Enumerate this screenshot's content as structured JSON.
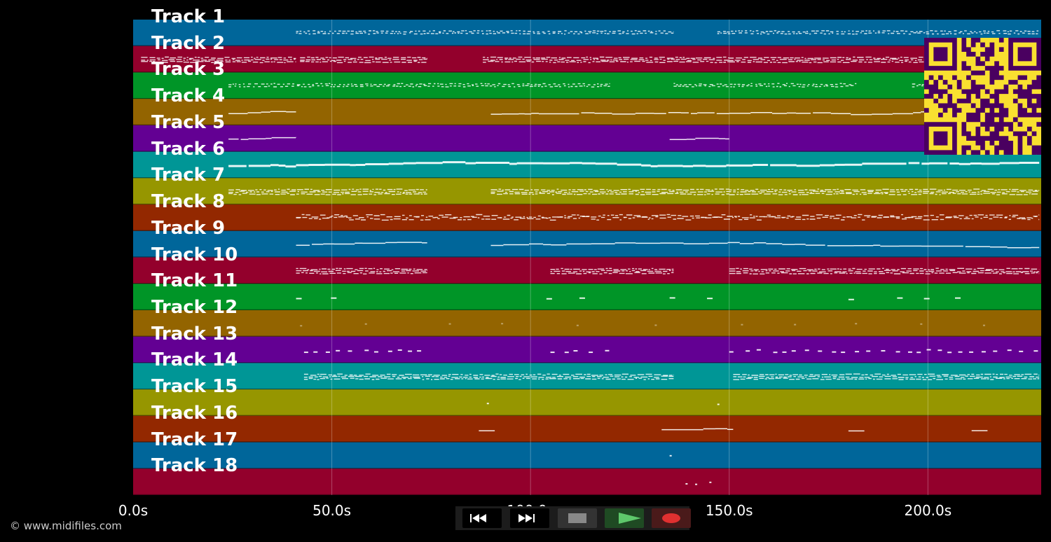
{
  "colors": {
    "background": "#000000",
    "track_colors": [
      "#00669a",
      "#93002c",
      "#009527",
      "#936400",
      "#630093",
      "#009696",
      "#969600",
      "#932800"
    ],
    "qr_fg": "#4a0060",
    "qr_bg": "#f9e030"
  },
  "chart_data": {
    "type": "piano-roll",
    "x_unit": "s",
    "xlim": [
      0,
      228.5
    ],
    "grid": true,
    "x_ticks": [
      {
        "value": 0,
        "label": "0.0s"
      },
      {
        "value": 50,
        "label": "50.0s"
      },
      {
        "value": 100,
        "label": "100.0s"
      },
      {
        "value": 150,
        "label": "150.0s"
      },
      {
        "value": 200,
        "label": "200.0s"
      }
    ],
    "tracks": [
      {
        "label": "Track 1",
        "segments": [
          [
            41,
            136
          ],
          [
            147,
            228
          ]
        ],
        "style": "sparse"
      },
      {
        "label": "Track 2",
        "segments": [
          [
            2,
            41
          ],
          [
            42,
            74
          ],
          [
            88,
            150
          ],
          [
            150,
            228
          ]
        ],
        "style": "dense"
      },
      {
        "label": "Track 3",
        "segments": [
          [
            24,
            120
          ],
          [
            136,
            182
          ],
          [
            196,
            228
          ]
        ],
        "style": "sparse"
      },
      {
        "label": "Track 4",
        "segments": [
          [
            24,
            41
          ],
          [
            90,
            150
          ],
          [
            150,
            228
          ]
        ],
        "style": "line"
      },
      {
        "label": "Track 5",
        "segments": [
          [
            24,
            41
          ],
          [
            135,
            150
          ]
        ],
        "style": "line"
      },
      {
        "label": "Track 6",
        "segments": [
          [
            24,
            41
          ],
          [
            41,
            150
          ],
          [
            150,
            228
          ]
        ],
        "style": "thick"
      },
      {
        "label": "Track 7",
        "segments": [
          [
            24,
            74
          ],
          [
            90,
            150
          ],
          [
            150,
            228
          ]
        ],
        "style": "dense"
      },
      {
        "label": "Track 8",
        "segments": [
          [
            41,
            228
          ]
        ],
        "style": "dotted"
      },
      {
        "label": "Track 9",
        "segments": [
          [
            41,
            74
          ],
          [
            90,
            228
          ]
        ],
        "style": "line"
      },
      {
        "label": "Track 10",
        "segments": [
          [
            41,
            74
          ],
          [
            105,
            136
          ],
          [
            150,
            228
          ]
        ],
        "style": "dense"
      },
      {
        "label": "Track 11",
        "segments": [
          [
            41,
            55
          ],
          [
            104,
            120
          ],
          [
            135,
            150
          ],
          [
            180,
            212
          ]
        ],
        "style": "dashes"
      },
      {
        "label": "Track 12",
        "segments": [
          [
            42,
            228
          ]
        ],
        "style": "faint"
      },
      {
        "label": "Track 13",
        "segments": [
          [
            43,
            74
          ],
          [
            105,
            122
          ],
          [
            150,
            228
          ]
        ],
        "style": "clusters"
      },
      {
        "label": "Track 14",
        "segments": [
          [
            43,
            136
          ],
          [
            151,
            228
          ]
        ],
        "style": "dense"
      },
      {
        "label": "Track 15",
        "segments": [
          [
            89,
            90
          ],
          [
            147,
            149
          ]
        ],
        "style": "dots"
      },
      {
        "label": "Track 16",
        "segments": [
          [
            87,
            91
          ],
          [
            133,
            151
          ],
          [
            180,
            184
          ],
          [
            211,
            215
          ]
        ],
        "style": "line"
      },
      {
        "label": "Track 17",
        "segments": [
          [
            135,
            136
          ]
        ],
        "style": "dots"
      },
      {
        "label": "Track 18",
        "segments": [
          [
            139,
            147
          ]
        ],
        "style": "dots"
      }
    ]
  },
  "copyright": "© www.midifiles.com",
  "transport": {
    "rewind_icon": "rewind-icon",
    "fast_forward_icon": "fast-forward-icon",
    "stop_icon": "stop-icon",
    "play_icon": "play-icon",
    "record_icon": "record-icon"
  }
}
